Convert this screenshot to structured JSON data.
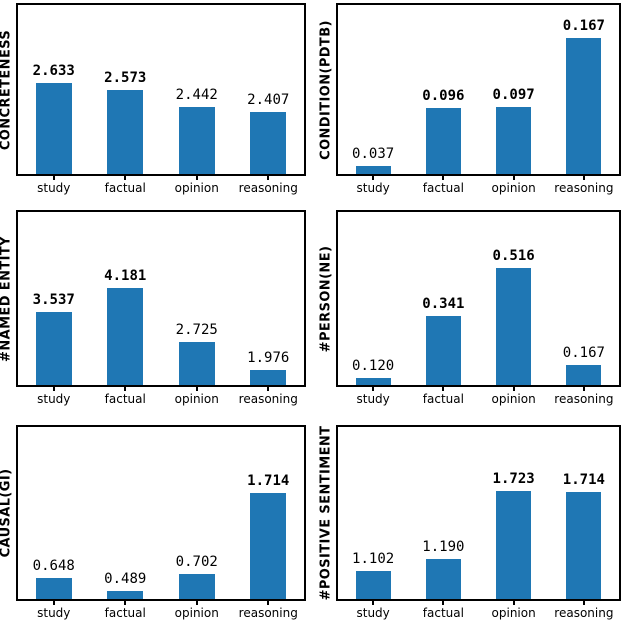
{
  "bar_color": "#1f77b4",
  "spine_color": "#000000",
  "text_color": "#000000",
  "chart_data": [
    {
      "type": "bar",
      "ylabel": "CONCRETENESS",
      "categories": [
        "study",
        "factual",
        "opinion",
        "reasoning"
      ],
      "values": [
        2.633,
        2.573,
        2.442,
        2.407
      ],
      "labels": [
        "2.633",
        "2.573",
        "2.442",
        "2.407"
      ],
      "bold": [
        true,
        true,
        false,
        false
      ],
      "ylim": [
        1.93,
        3.23
      ],
      "grid": false,
      "legend": null
    },
    {
      "type": "bar",
      "ylabel": "CONDITION(PDTB)",
      "categories": [
        "study",
        "factual",
        "opinion",
        "reasoning"
      ],
      "values": [
        0.037,
        0.096,
        0.097,
        0.167
      ],
      "labels": [
        "0.037",
        "0.096",
        "0.097",
        "0.167"
      ],
      "bold": [
        false,
        true,
        true,
        true
      ],
      "ylim": [
        0.029,
        0.2
      ],
      "grid": false,
      "legend": null
    },
    {
      "type": "bar",
      "ylabel": "#NAMED ENTITY",
      "categories": [
        "study",
        "factual",
        "opinion",
        "reasoning"
      ],
      "values": [
        3.537,
        4.181,
        2.725,
        1.976
      ],
      "labels": [
        "3.537",
        "4.181",
        "2.725",
        "1.976"
      ],
      "bold": [
        true,
        true,
        false,
        false
      ],
      "ylim": [
        1.56,
        6.24
      ],
      "grid": false,
      "legend": null
    },
    {
      "type": "bar",
      "ylabel": "#PERSON(NE)",
      "categories": [
        "study",
        "factual",
        "opinion",
        "reasoning"
      ],
      "values": [
        0.12,
        0.341,
        0.516,
        0.167
      ],
      "labels": [
        "0.120",
        "0.341",
        "0.516",
        "0.167"
      ],
      "bold": [
        false,
        true,
        true,
        false
      ],
      "ylim": [
        0.095,
        0.715
      ],
      "grid": false,
      "legend": null
    },
    {
      "type": "bar",
      "ylabel": "CAUSAL(GI)",
      "categories": [
        "study",
        "factual",
        "opinion",
        "reasoning"
      ],
      "values": [
        0.648,
        0.489,
        0.702,
        1.714
      ],
      "labels": [
        "0.648",
        "0.489",
        "0.702",
        "1.714"
      ],
      "bold": [
        false,
        false,
        false,
        true
      ],
      "ylim": [
        0.387,
        2.54
      ],
      "grid": false,
      "legend": null
    },
    {
      "type": "bar",
      "ylabel": "#POSITIVE SENTIMENT",
      "categories": [
        "study",
        "factual",
        "opinion",
        "reasoning"
      ],
      "values": [
        1.102,
        1.19,
        1.723,
        1.714
      ],
      "labels": [
        "1.102",
        "1.190",
        "1.723",
        "1.714"
      ],
      "bold": [
        false,
        false,
        true,
        true
      ],
      "ylim": [
        0.88,
        2.22
      ],
      "grid": false,
      "legend": null
    }
  ]
}
